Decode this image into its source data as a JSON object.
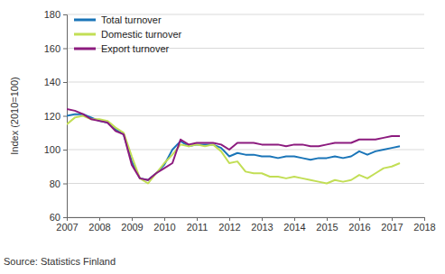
{
  "chart_data": {
    "type": "line",
    "y_label": "Index (2010=100)",
    "source": "Source: Statistics Finland",
    "x": [
      2007,
      2007.25,
      2007.5,
      2007.75,
      2008,
      2008.25,
      2008.5,
      2008.75,
      2009,
      2009.25,
      2009.5,
      2009.75,
      2010,
      2010.25,
      2010.5,
      2010.75,
      2011,
      2011.25,
      2011.5,
      2011.75,
      2012,
      2012.25,
      2012.5,
      2012.75,
      2013,
      2013.25,
      2013.5,
      2013.75,
      2014,
      2014.25,
      2014.5,
      2014.75,
      2015,
      2015.25,
      2015.5,
      2015.75,
      2016,
      2016.25,
      2016.5,
      2016.75,
      2017,
      2017.25
    ],
    "series": [
      {
        "name": "Total turnover",
        "color": "#1a75b8",
        "values": [
          120,
          121,
          121,
          119,
          117,
          116,
          112,
          109,
          93,
          83,
          82,
          86,
          91,
          100,
          105,
          102,
          103,
          103,
          103,
          101,
          96,
          98,
          97,
          97,
          96,
          96,
          95,
          96,
          96,
          95,
          94,
          95,
          95,
          96,
          95,
          96,
          99,
          97,
          99,
          100,
          101,
          102
        ]
      },
      {
        "name": "Domestic turnover",
        "color": "#c2de55",
        "values": [
          115,
          119,
          120,
          118,
          118,
          117,
          113,
          110,
          96,
          83,
          80,
          86,
          92,
          97,
          103,
          102,
          103,
          102,
          103,
          99,
          92,
          93,
          87,
          86,
          86,
          84,
          84,
          83,
          84,
          83,
          82,
          81,
          80,
          82,
          81,
          82,
          85,
          83,
          86,
          89,
          90,
          92
        ]
      },
      {
        "name": "Export turnover",
        "color": "#8c1b7e",
        "values": [
          124,
          123,
          121,
          118,
          117,
          116,
          111,
          109,
          91,
          83,
          82,
          86,
          89,
          92,
          106,
          103,
          104,
          104,
          104,
          103,
          100,
          104,
          104,
          104,
          103,
          103,
          103,
          102,
          103,
          103,
          102,
          102,
          103,
          104,
          104,
          104,
          106,
          106,
          106,
          107,
          108,
          108
        ]
      }
    ],
    "xlim": [
      2007,
      2018
    ],
    "xticks": [
      2007,
      2008,
      2009,
      2010,
      2011,
      2012,
      2013,
      2014,
      2015,
      2016,
      2017,
      2018
    ],
    "ylim": [
      60,
      180
    ],
    "yticks": [
      60,
      80,
      100,
      120,
      140,
      160,
      180
    ],
    "grid": true,
    "legend": "top-left"
  }
}
